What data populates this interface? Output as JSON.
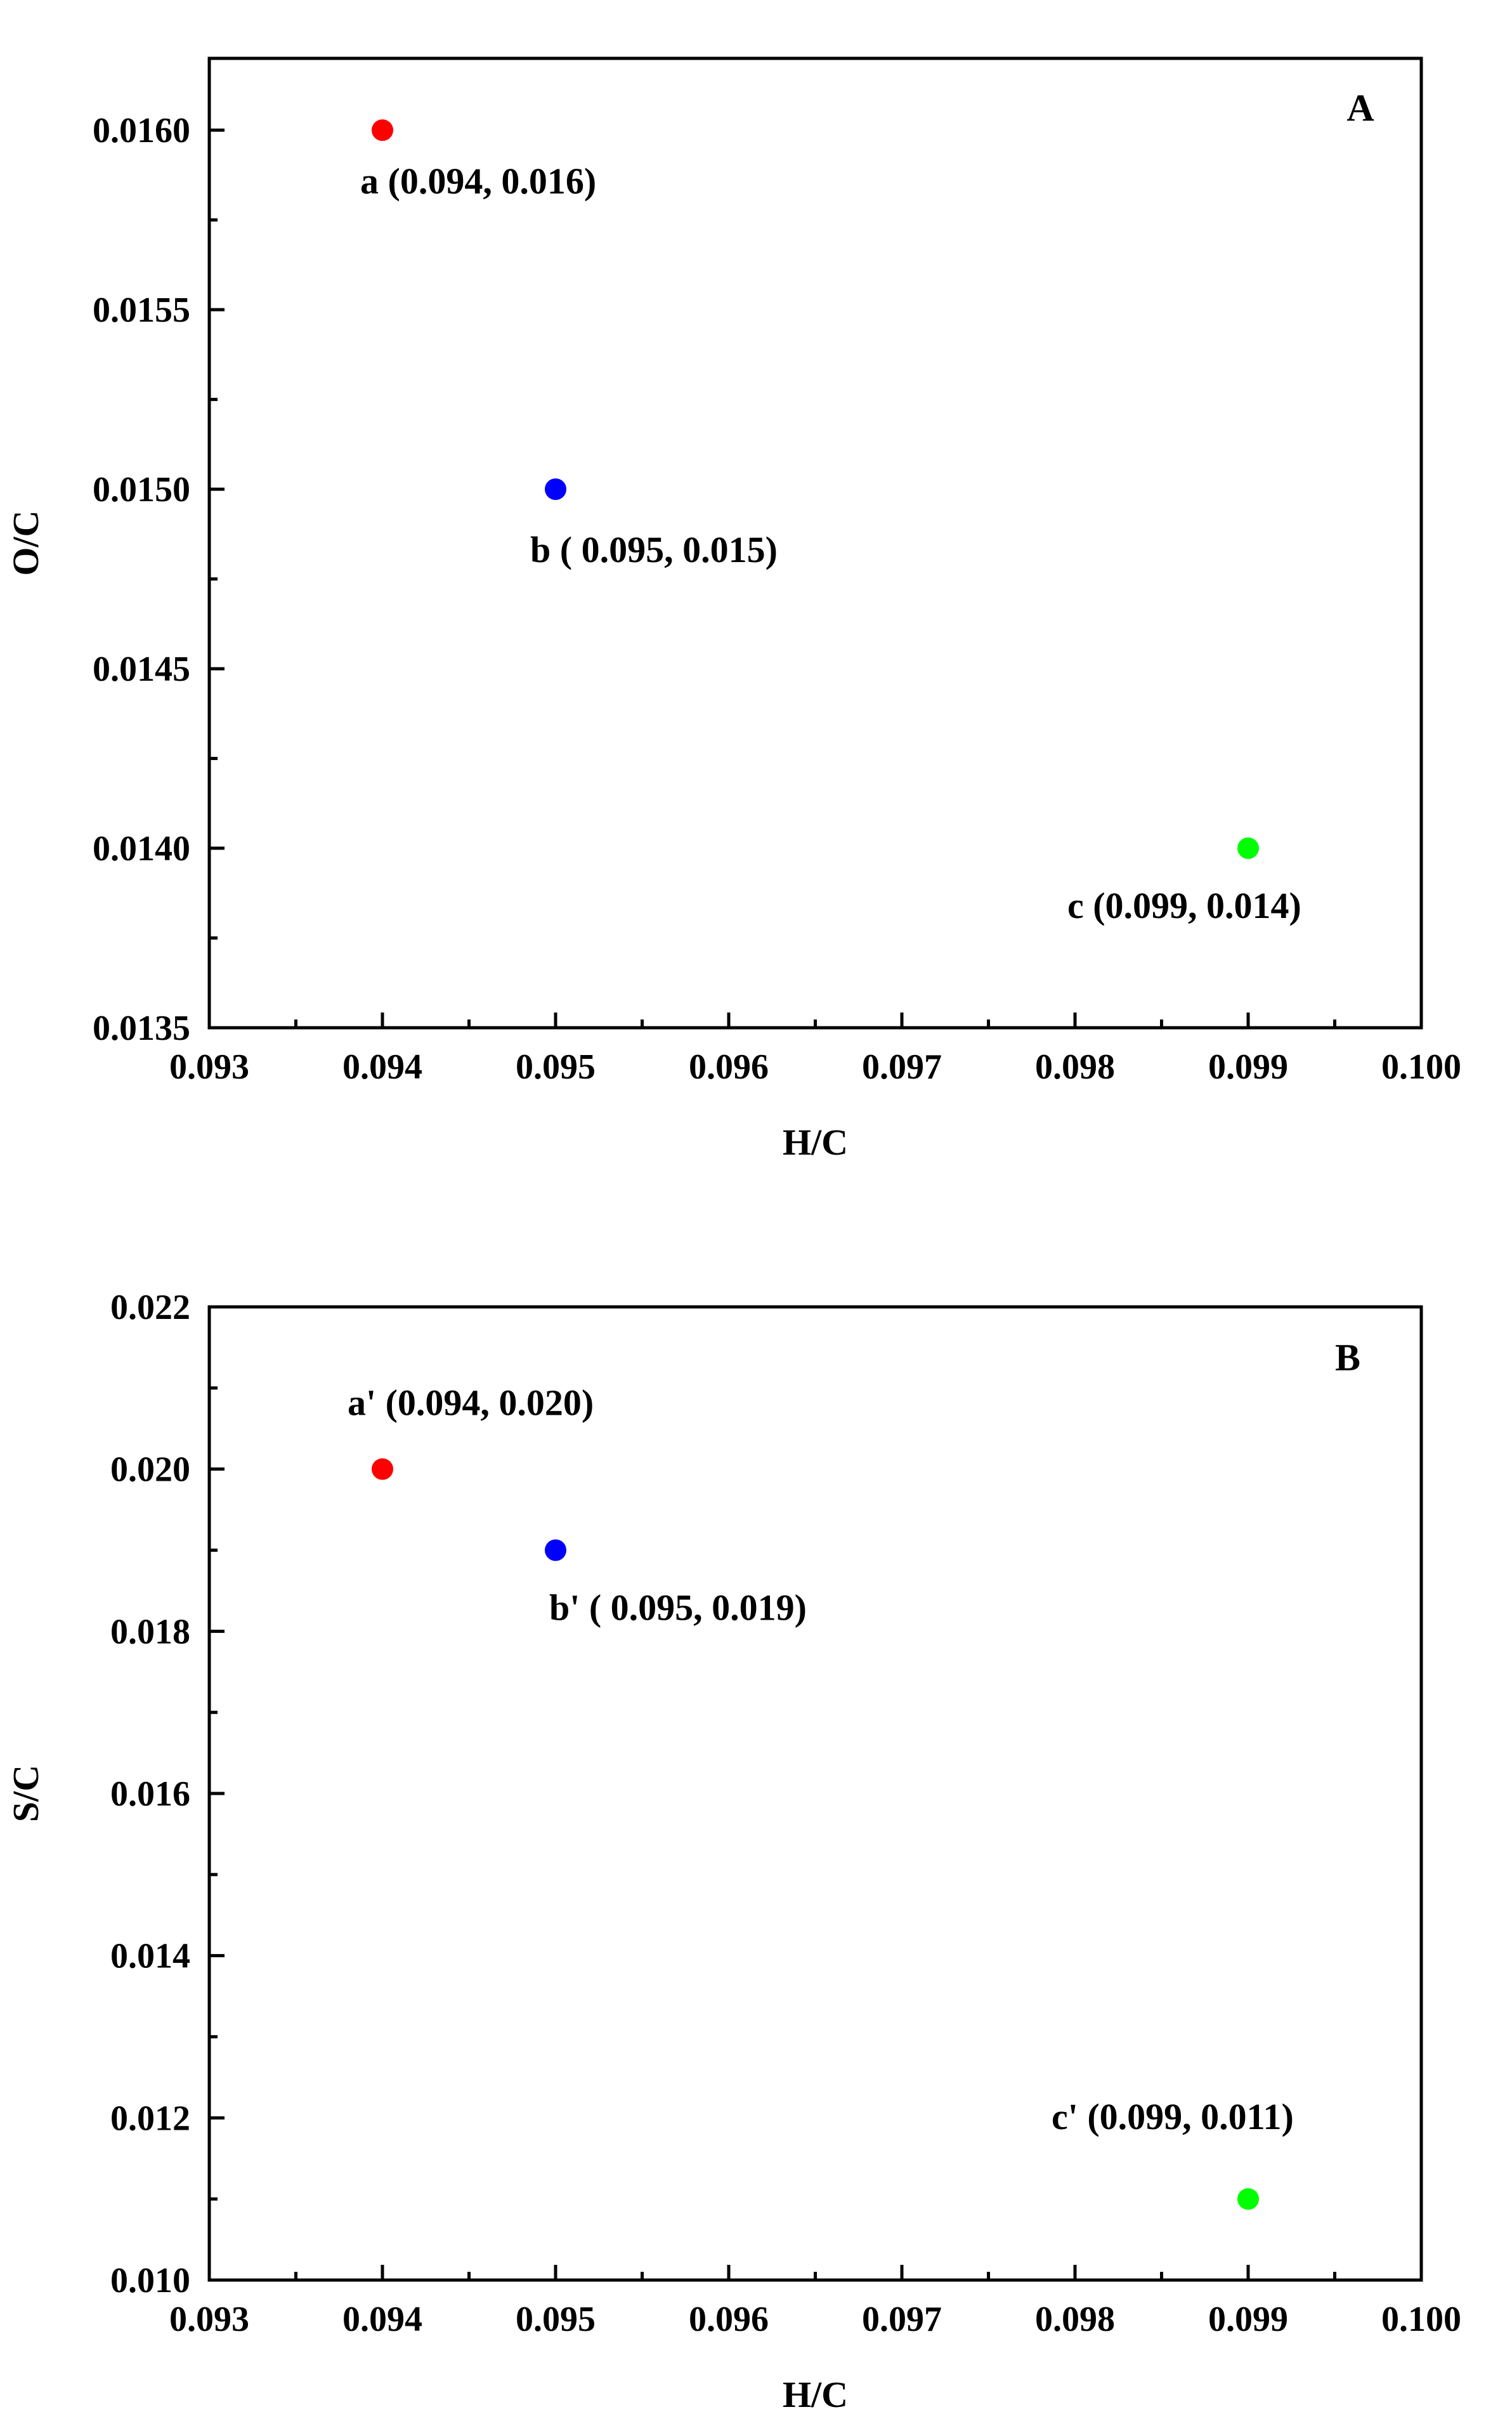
{
  "chart_data": [
    {
      "type": "scatter",
      "panel_label": "A",
      "xlabel": "H/C",
      "ylabel": "O/C",
      "xlim": [
        0.093,
        0.1
      ],
      "ylim": [
        0.0135,
        0.0162
      ],
      "x_ticks": [
        "0.093",
        "0.094",
        "0.095",
        "0.096",
        "0.097",
        "0.098",
        "0.099",
        "0.100"
      ],
      "y_ticks": [
        "0.0135",
        "0.0140",
        "0.0145",
        "0.0150",
        "0.0155",
        "0.0160"
      ],
      "grid": false,
      "points": [
        {
          "label": "a (0.094, 0.016)",
          "x": 0.094,
          "y": 0.016,
          "color": "#ff0000"
        },
        {
          "label": "b ( 0.095, 0.015)",
          "x": 0.095,
          "y": 0.015,
          "color": "#0000ff"
        },
        {
          "label": "c (0.099, 0.014)",
          "x": 0.099,
          "y": 0.014,
          "color": "#00ff00"
        }
      ]
    },
    {
      "type": "scatter",
      "panel_label": "B",
      "xlabel": "H/C",
      "ylabel": "S/C",
      "xlim": [
        0.093,
        0.1
      ],
      "ylim": [
        0.01,
        0.022
      ],
      "x_ticks": [
        "0.093",
        "0.094",
        "0.095",
        "0.096",
        "0.097",
        "0.098",
        "0.099",
        "0.100"
      ],
      "y_ticks": [
        "0.010",
        "0.012",
        "0.014",
        "0.016",
        "0.018",
        "0.020",
        "0.022"
      ],
      "grid": false,
      "points": [
        {
          "label": "a' (0.094, 0.020)",
          "x": 0.094,
          "y": 0.02,
          "color": "#ff0000"
        },
        {
          "label": "b' ( 0.095, 0.019)",
          "x": 0.095,
          "y": 0.019,
          "color": "#0000ff"
        },
        {
          "label": "c' (0.099, 0.011)",
          "x": 0.099,
          "y": 0.011,
          "color": "#00ff00"
        }
      ]
    }
  ]
}
